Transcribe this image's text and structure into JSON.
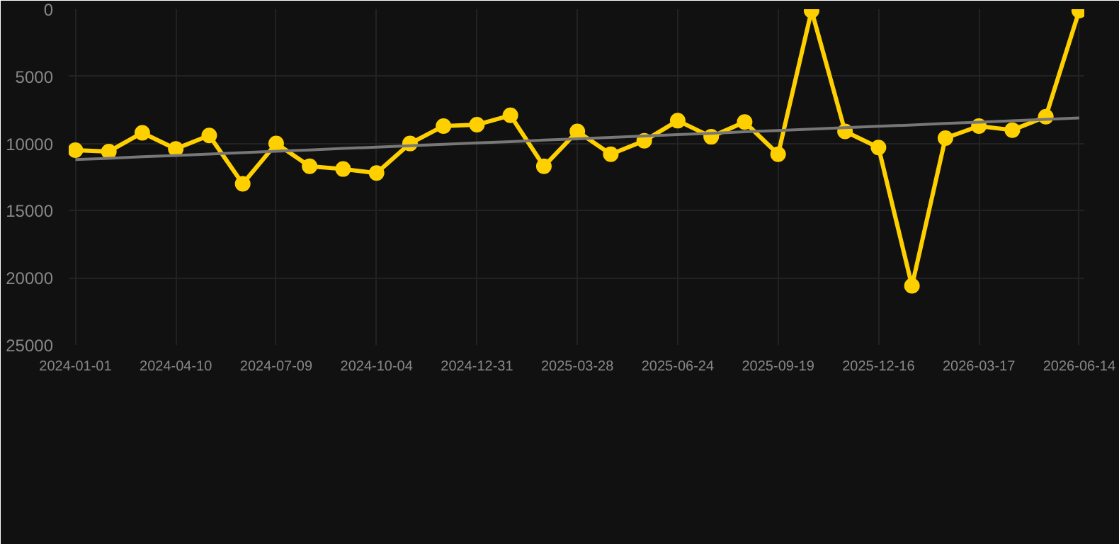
{
  "chart_data": {
    "type": "line",
    "categories": [
      "2024-01-01",
      null,
      null,
      "2024-04-10",
      null,
      null,
      "2024-07-09",
      null,
      null,
      "2024-10-04",
      null,
      null,
      "2024-12-31",
      null,
      null,
      "2025-03-28",
      null,
      null,
      "2025-06-24",
      null,
      null,
      "2025-09-19",
      null,
      null,
      "2025-12-16",
      null,
      null,
      "2026-03-17",
      null,
      null,
      "2026-06-14"
    ],
    "series": [
      {
        "color": "#ffd000",
        "marker": "circle",
        "values": [
          10500,
          10600,
          9200,
          10400,
          9400,
          13000,
          10000,
          11700,
          11900,
          12200,
          10000,
          8700,
          8600,
          7900,
          11700,
          9100,
          10800,
          9800,
          8300,
          9500,
          8400,
          10800,
          100,
          9100,
          10300,
          20600,
          9600,
          8700,
          9000,
          8000,
          100
        ]
      },
      {
        "color": "#777777",
        "marker": "none",
        "values": [
          11200,
          11100,
          10990,
          10890,
          10790,
          10680,
          10580,
          10480,
          10370,
          10270,
          10170,
          10060,
          9960,
          9860,
          9750,
          9650,
          9550,
          9440,
          9340,
          9240,
          9130,
          9030,
          8930,
          8820,
          8720,
          8620,
          8510,
          8410,
          8310,
          8200,
          8100
        ]
      }
    ],
    "ylim": [
      25000,
      0
    ],
    "yticks": [
      0,
      5000,
      10000,
      15000,
      20000,
      25000
    ],
    "grid": true
  }
}
